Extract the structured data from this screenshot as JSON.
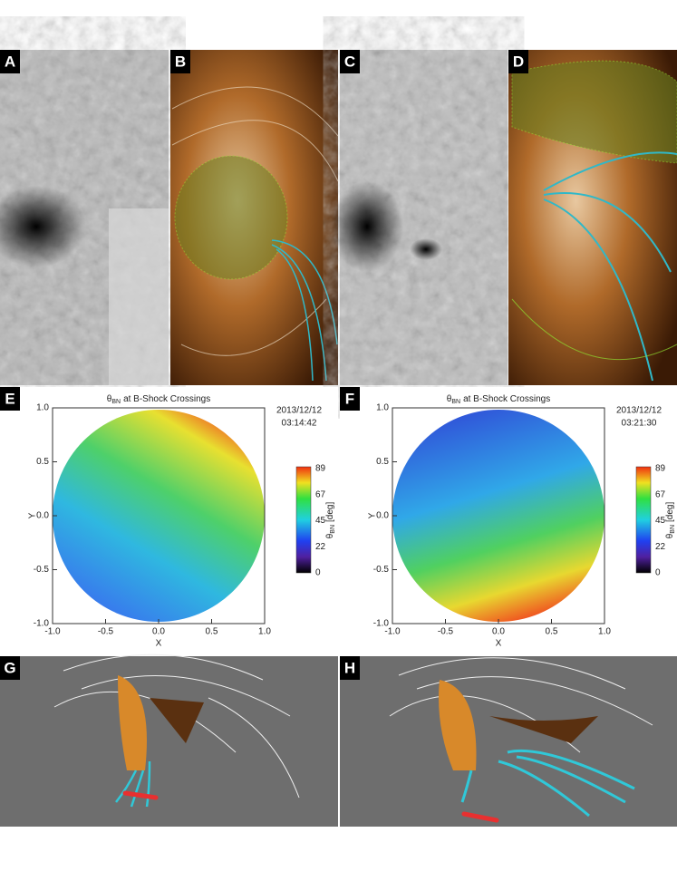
{
  "panels": [
    "A",
    "B",
    "C",
    "D",
    "E",
    "F",
    "G",
    "H"
  ],
  "plots": [
    {
      "title": {
        "symbol": "θ",
        "subscript": "BN",
        "text": "at B-Shock Crossings"
      },
      "date": "2013/12/12",
      "time": "03:14:42",
      "x_label": "X",
      "y_label": "Y",
      "xticks": [
        "-1.0",
        "-0.5",
        "0.0",
        "0.5",
        "1.0"
      ],
      "yticks": [
        "1.0",
        "0.5",
        "0.0",
        "-0.5",
        "-1.0"
      ],
      "colorbar": {
        "label": {
          "symbol": "θ",
          "subscript": "BN",
          "unit": "[deg]"
        },
        "ticks": [
          "89",
          "67",
          "45",
          "22",
          "0"
        ]
      }
    },
    {
      "title": {
        "symbol": "θ",
        "subscript": "BN",
        "text": "at B-Shock Crossings"
      },
      "date": "2013/12/12",
      "time": "03:21:30",
      "x_label": "X",
      "y_label": "Y",
      "xticks": [
        "-1.0",
        "-0.5",
        "0.0",
        "0.5",
        "1.0"
      ],
      "yticks": [
        "1.0",
        "0.5",
        "0.0",
        "-0.5",
        "-1.0"
      ],
      "colorbar": {
        "label": {
          "symbol": "θ",
          "subscript": "BN",
          "unit": "[deg]"
        },
        "ticks": [
          "89",
          "67",
          "45",
          "22",
          "0"
        ]
      }
    }
  ]
}
